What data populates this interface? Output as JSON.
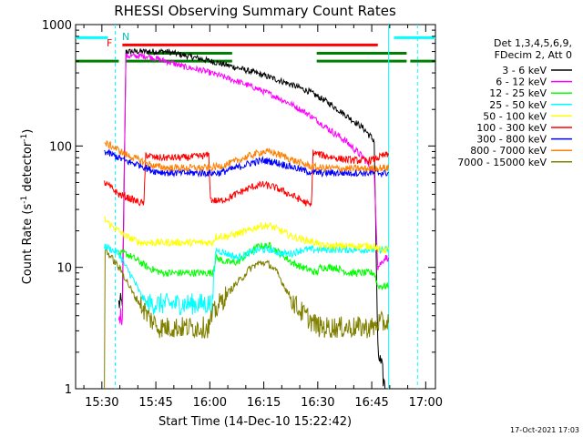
{
  "chart_data": {
    "type": "line",
    "title": "RHESSI Observing Summary Count Rates",
    "xlabel": "Start Time (14-Dec-10 15:22:42)",
    "ylabel_main": "Count Rate (s",
    "ylabel_sup1": "-1",
    "ylabel_mid": " detector",
    "ylabel_sup2": "-1",
    "ylabel_end": ")",
    "y_scale": "log",
    "ylim": [
      1,
      1000
    ],
    "xlim_minutes": [
      0,
      100
    ],
    "x_ticks": [
      {
        "label": "15:30",
        "t": 7.3
      },
      {
        "label": "15:45",
        "t": 22.3
      },
      {
        "label": "16:00",
        "t": 37.3
      },
      {
        "label": "16:15",
        "t": 52.3
      },
      {
        "label": "16:30",
        "t": 67.3
      },
      {
        "label": "16:45",
        "t": 82.3
      },
      {
        "label": "17:00",
        "t": 97.3
      }
    ],
    "y_ticks": [
      {
        "label": "1",
        "v": 1
      },
      {
        "label": "10",
        "v": 10
      },
      {
        "label": "100",
        "v": 100
      },
      {
        "label": "1000",
        "v": 1000
      }
    ],
    "legend_header": [
      "Det 1,3,4,5,6,9,",
      "FDecim 2, Att 0"
    ],
    "legend_position": "right",
    "flag_labels": {
      "f": "F",
      "n": "N"
    },
    "series": [
      {
        "name": "3 - 6 keV",
        "color": "#000000",
        "points": [
          [
            12,
            5
          ],
          [
            13,
            5
          ],
          [
            14,
            600
          ],
          [
            20,
            600
          ],
          [
            25,
            600
          ],
          [
            30,
            560
          ],
          [
            35,
            520
          ],
          [
            40,
            480
          ],
          [
            45,
            440
          ],
          [
            50,
            400
          ],
          [
            55,
            360
          ],
          [
            60,
            320
          ],
          [
            65,
            280
          ],
          [
            70,
            230
          ],
          [
            75,
            180
          ],
          [
            80,
            140
          ],
          [
            83,
            110
          ],
          [
            84,
            2
          ],
          [
            85,
            1.5
          ],
          [
            86,
            1
          ]
        ]
      },
      {
        "name": "6 - 12 keV",
        "color": "#ff00ff",
        "points": [
          [
            12,
            4
          ],
          [
            13,
            4
          ],
          [
            14,
            550
          ],
          [
            20,
            550
          ],
          [
            25,
            500
          ],
          [
            30,
            450
          ],
          [
            35,
            420
          ],
          [
            40,
            380
          ],
          [
            45,
            340
          ],
          [
            50,
            300
          ],
          [
            55,
            260
          ],
          [
            60,
            220
          ],
          [
            65,
            180
          ],
          [
            70,
            140
          ],
          [
            75,
            110
          ],
          [
            80,
            80
          ],
          [
            83,
            60
          ],
          [
            84,
            10
          ],
          [
            86,
            12
          ],
          [
            87,
            12
          ]
        ]
      },
      {
        "name": "12 - 25 keV",
        "color": "#00ff00",
        "points": [
          [
            12,
            13
          ],
          [
            14,
            13
          ],
          [
            16,
            12
          ],
          [
            18,
            11
          ],
          [
            20,
            10
          ],
          [
            24,
            9
          ],
          [
            28,
            9
          ],
          [
            32,
            9
          ],
          [
            36,
            9
          ],
          [
            38,
            9
          ],
          [
            39,
            12
          ],
          [
            42,
            11
          ],
          [
            45,
            11
          ],
          [
            48,
            13
          ],
          [
            51,
            15
          ],
          [
            54,
            15
          ],
          [
            57,
            13
          ],
          [
            60,
            11
          ],
          [
            63,
            10
          ],
          [
            67,
            9
          ],
          [
            68,
            10
          ],
          [
            72,
            10
          ],
          [
            76,
            9
          ],
          [
            80,
            9
          ],
          [
            83,
            9
          ],
          [
            84,
            7
          ],
          [
            87,
            7
          ]
        ]
      },
      {
        "name": "25 - 50 keV",
        "color": "#00ffff",
        "points": [
          [
            8,
            15
          ],
          [
            10,
            14
          ],
          [
            12,
            13
          ],
          [
            14,
            10
          ],
          [
            16,
            8
          ],
          [
            18,
            6
          ],
          [
            20,
            5
          ],
          [
            23,
            5
          ],
          [
            26,
            5
          ],
          [
            29,
            5
          ],
          [
            32,
            5
          ],
          [
            35,
            5
          ],
          [
            37,
            5
          ],
          [
            38,
            5
          ],
          [
            39,
            14
          ],
          [
            42,
            13
          ],
          [
            45,
            12
          ],
          [
            48,
            13
          ],
          [
            51,
            14
          ],
          [
            54,
            14
          ],
          [
            57,
            13
          ],
          [
            60,
            13
          ],
          [
            63,
            14
          ],
          [
            67,
            14
          ],
          [
            68,
            14
          ],
          [
            72,
            14
          ],
          [
            76,
            14
          ],
          [
            80,
            14
          ],
          [
            83,
            14
          ],
          [
            84,
            14
          ],
          [
            87,
            14
          ]
        ]
      },
      {
        "name": "50 - 100 keV",
        "color": "#ffff00",
        "points": [
          [
            8,
            25
          ],
          [
            10,
            22
          ],
          [
            12,
            20
          ],
          [
            14,
            18
          ],
          [
            16,
            17
          ],
          [
            18,
            16
          ],
          [
            20,
            16
          ],
          [
            23,
            16
          ],
          [
            26,
            16
          ],
          [
            29,
            16
          ],
          [
            32,
            16
          ],
          [
            35,
            16
          ],
          [
            37,
            16
          ],
          [
            38,
            16
          ],
          [
            39,
            18
          ],
          [
            42,
            18
          ],
          [
            45,
            19
          ],
          [
            48,
            20
          ],
          [
            51,
            22
          ],
          [
            54,
            22
          ],
          [
            57,
            20
          ],
          [
            60,
            18
          ],
          [
            63,
            17
          ],
          [
            67,
            16
          ],
          [
            68,
            15
          ],
          [
            72,
            15
          ],
          [
            76,
            15
          ],
          [
            80,
            15
          ],
          [
            83,
            15
          ],
          [
            84,
            14
          ],
          [
            87,
            14
          ]
        ]
      },
      {
        "name": "100 - 300 keV",
        "color": "#ff0000",
        "points": [
          [
            8,
            50
          ],
          [
            10,
            45
          ],
          [
            12,
            40
          ],
          [
            14,
            38
          ],
          [
            16,
            36
          ],
          [
            18,
            34
          ],
          [
            19,
            34
          ],
          [
            19.5,
            85
          ],
          [
            22,
            80
          ],
          [
            26,
            80
          ],
          [
            30,
            80
          ],
          [
            34,
            82
          ],
          [
            37,
            84
          ],
          [
            37.5,
            36
          ],
          [
            40,
            35
          ],
          [
            43,
            38
          ],
          [
            46,
            42
          ],
          [
            49,
            46
          ],
          [
            52,
            48
          ],
          [
            55,
            46
          ],
          [
            58,
            42
          ],
          [
            61,
            38
          ],
          [
            64,
            34
          ],
          [
            65.5,
            32
          ],
          [
            66,
            88
          ],
          [
            70,
            82
          ],
          [
            74,
            78
          ],
          [
            78,
            76
          ],
          [
            82,
            76
          ],
          [
            84,
            80
          ],
          [
            86,
            84
          ],
          [
            87,
            84
          ]
        ]
      },
      {
        "name": "300 - 800 keV",
        "color": "#0000ff",
        "points": [
          [
            8,
            90
          ],
          [
            10,
            85
          ],
          [
            12,
            80
          ],
          [
            14,
            75
          ],
          [
            16,
            72
          ],
          [
            18,
            70
          ],
          [
            20,
            65
          ],
          [
            22,
            62
          ],
          [
            26,
            60
          ],
          [
            30,
            60
          ],
          [
            34,
            60
          ],
          [
            37,
            60
          ],
          [
            40,
            60
          ],
          [
            43,
            64
          ],
          [
            46,
            68
          ],
          [
            49,
            73
          ],
          [
            52,
            76
          ],
          [
            55,
            74
          ],
          [
            58,
            70
          ],
          [
            61,
            66
          ],
          [
            64,
            62
          ],
          [
            67,
            60
          ],
          [
            70,
            60
          ],
          [
            74,
            60
          ],
          [
            78,
            60
          ],
          [
            82,
            60
          ],
          [
            84,
            60
          ],
          [
            87,
            60
          ]
        ]
      },
      {
        "name": "800 - 7000 keV",
        "color": "#ff8000",
        "points": [
          [
            8,
            105
          ],
          [
            10,
            100
          ],
          [
            12,
            92
          ],
          [
            14,
            85
          ],
          [
            16,
            80
          ],
          [
            18,
            76
          ],
          [
            20,
            72
          ],
          [
            22,
            68
          ],
          [
            26,
            66
          ],
          [
            30,
            66
          ],
          [
            34,
            66
          ],
          [
            37,
            66
          ],
          [
            40,
            68
          ],
          [
            43,
            72
          ],
          [
            46,
            78
          ],
          [
            49,
            84
          ],
          [
            52,
            90
          ],
          [
            55,
            88
          ],
          [
            58,
            82
          ],
          [
            61,
            75
          ],
          [
            64,
            70
          ],
          [
            67,
            66
          ],
          [
            70,
            66
          ],
          [
            74,
            65
          ],
          [
            78,
            65
          ],
          [
            82,
            65
          ],
          [
            84,
            66
          ],
          [
            87,
            66
          ]
        ]
      },
      {
        "name": "7000 - 15000 keV",
        "color": "#808000",
        "points": [
          [
            8,
            1
          ],
          [
            8.2,
            14
          ],
          [
            10,
            12
          ],
          [
            12,
            10
          ],
          [
            14,
            8
          ],
          [
            16,
            6
          ],
          [
            18,
            5
          ],
          [
            20,
            4
          ],
          [
            23,
            3.2
          ],
          [
            26,
            3.2
          ],
          [
            29,
            3.2
          ],
          [
            32,
            3.2
          ],
          [
            35,
            3.2
          ],
          [
            37,
            3.2
          ],
          [
            38,
            4
          ],
          [
            40,
            5
          ],
          [
            42,
            6
          ],
          [
            44,
            7
          ],
          [
            46,
            8
          ],
          [
            48,
            9.5
          ],
          [
            50,
            10.5
          ],
          [
            52,
            11
          ],
          [
            54,
            10.5
          ],
          [
            56,
            9
          ],
          [
            58,
            7
          ],
          [
            60,
            5.5
          ],
          [
            62,
            4.5
          ],
          [
            64,
            4
          ],
          [
            66,
            3.5
          ],
          [
            68,
            3.2
          ],
          [
            72,
            3.2
          ],
          [
            76,
            3.2
          ],
          [
            80,
            3.2
          ],
          [
            83,
            3.2
          ],
          [
            84,
            3.5
          ],
          [
            87,
            3.5
          ]
        ]
      }
    ],
    "flag_bars": [
      {
        "color": "#00ffff",
        "y": 780,
        "segments": [
          [
            0,
            9
          ],
          [
            88.5,
            100
          ]
        ]
      },
      {
        "color": "#ff0000",
        "y": 680,
        "segments": [
          [
            13,
            84
          ]
        ]
      },
      {
        "color": "#008000",
        "y": 500,
        "segments": [
          [
            0,
            12
          ],
          [
            14,
            43.5
          ],
          [
            67,
            92
          ],
          [
            93,
            100
          ]
        ]
      },
      {
        "color": "#008000",
        "y": 580,
        "segments": [
          [
            20,
            43.5
          ],
          [
            67,
            92
          ]
        ]
      }
    ],
    "vlines": [
      {
        "t": 11,
        "color": "#00ffff",
        "style": "dashed",
        "ylow": 1,
        "yhigh": 1000
      },
      {
        "t": 87,
        "color": "#00ffff",
        "style": "solid",
        "ylow": 1,
        "yhigh": 1000
      },
      {
        "t": 95,
        "color": "#00ffff",
        "style": "dashed",
        "ylow": 1,
        "yhigh": 1000
      }
    ]
  },
  "timestamp": "17-Oct-2021 17:03"
}
